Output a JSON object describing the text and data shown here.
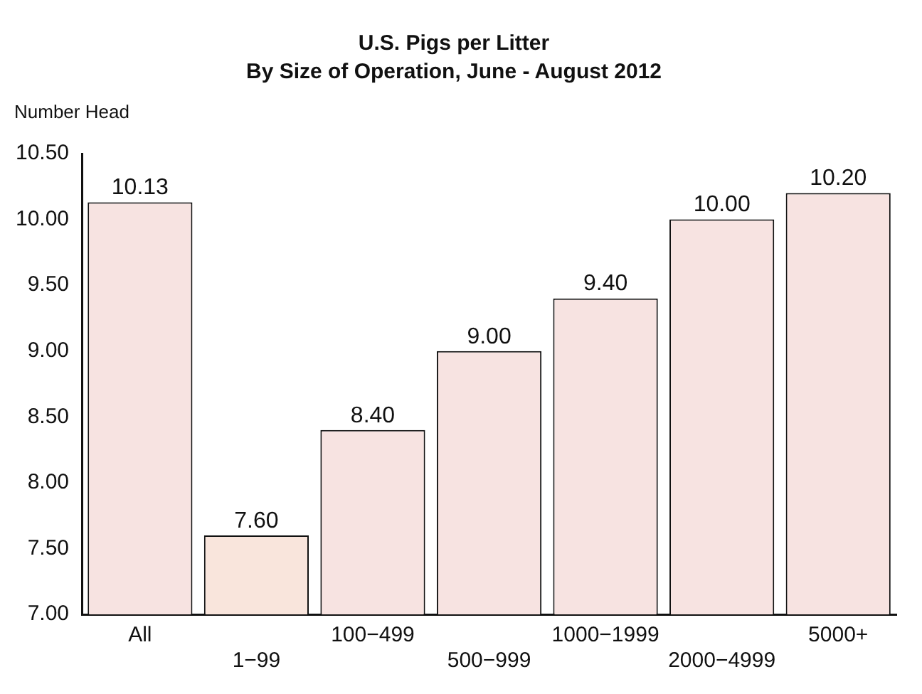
{
  "chart_data": {
    "type": "bar",
    "title": "U.S. Pigs per Litter",
    "subtitle": "By Size of Operation, June - August 2012",
    "ylabel": "Number Head",
    "categories": [
      "All",
      "1−99",
      "100−499",
      "500−999",
      "1000−1999",
      "2000−4999",
      "5000+"
    ],
    "values": [
      10.13,
      7.6,
      8.4,
      9.0,
      9.4,
      10.0,
      10.2
    ],
    "value_labels": [
      "10.13",
      "7.60",
      "8.40",
      "9.00",
      "9.40",
      "10.00",
      "10.20"
    ],
    "colors": [
      "#f7e3e1",
      "#f9e5dc",
      "#f7e3e1",
      "#f7e3e1",
      "#f7e3e1",
      "#f7e3e1",
      "#f7e3e1"
    ],
    "ylim": [
      7,
      10.5
    ],
    "yticks": [
      {
        "value": 7,
        "label": "7.00"
      },
      {
        "value": 7.5,
        "label": "7.50"
      },
      {
        "value": 8,
        "label": "8.00"
      },
      {
        "value": 8.5,
        "label": "8.50"
      },
      {
        "value": 9,
        "label": "9.00"
      },
      {
        "value": 9.5,
        "label": "9.50"
      },
      {
        "value": 10,
        "label": "10.00"
      },
      {
        "value": 10.5,
        "label": "10.50"
      }
    ],
    "grid": false,
    "legend": false
  }
}
